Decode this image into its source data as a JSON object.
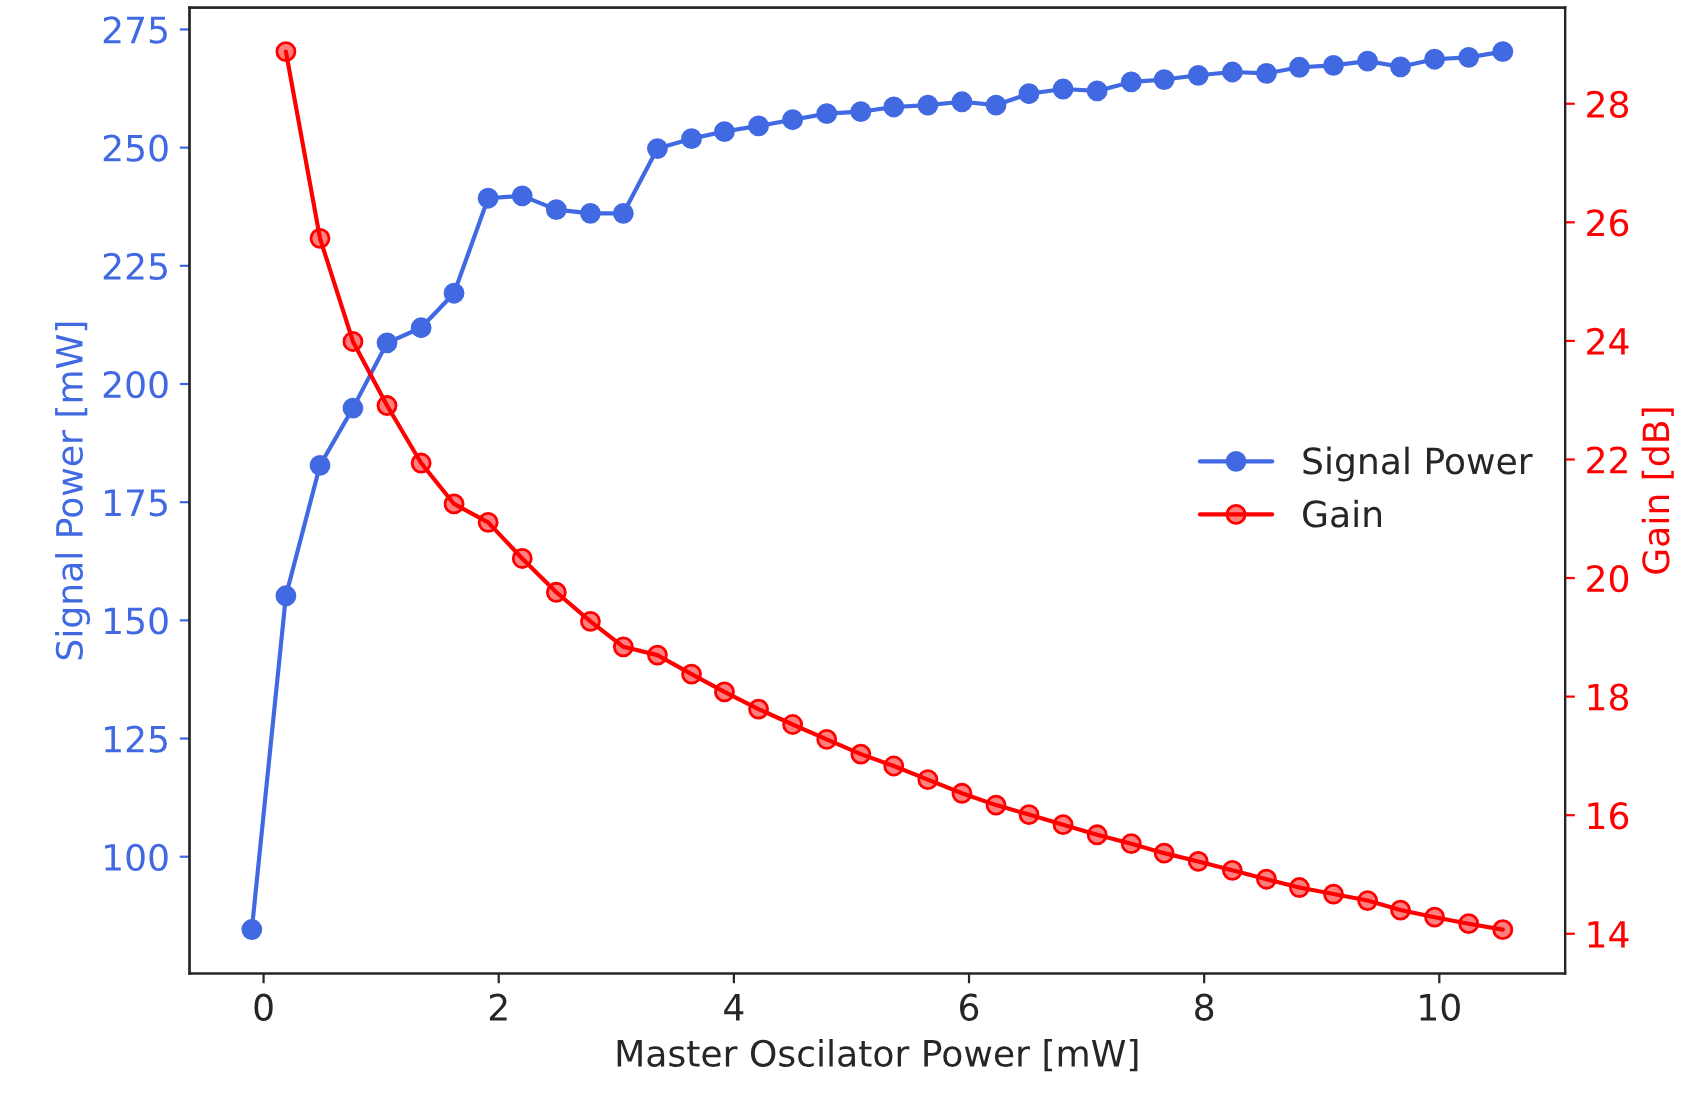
{
  "chart_data": {
    "type": "line",
    "xlabel": "Master Oscilator Power [mW]",
    "ylabel": "Signal Power [mW]",
    "y2label": "Gain [dB]",
    "x": [
      -0.1,
      0.19,
      0.48,
      0.76,
      1.05,
      1.34,
      1.62,
      1.91,
      2.2,
      2.49,
      2.78,
      3.06,
      3.35,
      3.64,
      3.92,
      4.21,
      4.5,
      4.79,
      5.08,
      5.36,
      5.65,
      5.94,
      6.23,
      6.51,
      6.8,
      7.09,
      7.38,
      7.66,
      7.95,
      8.24,
      8.53,
      8.81,
      9.1,
      9.39,
      9.67,
      9.96,
      10.25,
      10.54
    ],
    "series": [
      {
        "name": "Signal Power",
        "color": "#4169e1",
        "values": [
          84.6,
          155.2,
          182.8,
          194.9,
          208.7,
          211.9,
          219.2,
          239.3,
          239.8,
          236.9,
          236.1,
          236.1,
          249.8,
          251.9,
          253.4,
          254.6,
          255.9,
          257.2,
          257.6,
          258.6,
          259.0,
          259.7,
          259.0,
          261.4,
          262.4,
          262.0,
          263.9,
          264.4,
          265.3,
          266.0,
          265.7,
          267.0,
          267.4,
          268.3,
          267.1,
          268.7,
          269.1,
          270.3
        ]
      },
      {
        "name": "Gain",
        "color": "#ff0000",
        "axis": "y2",
        "values": [
          null,
          28.88,
          25.73,
          23.99,
          22.91,
          21.94,
          21.25,
          20.94,
          20.33,
          19.76,
          19.27,
          18.84,
          18.7,
          18.38,
          18.08,
          17.79,
          17.53,
          17.28,
          17.03,
          16.83,
          16.6,
          16.37,
          16.17,
          16.01,
          15.84,
          15.67,
          15.52,
          15.36,
          15.22,
          15.07,
          14.92,
          14.78,
          14.67,
          14.56,
          14.4,
          14.28,
          14.17,
          14.07
        ]
      }
    ],
    "xlim": [
      -0.63,
      11.07
    ],
    "xticks": [
      0,
      2,
      4,
      6,
      8,
      10
    ],
    "ylim": [
      75.3,
      279.6
    ],
    "yticks": [
      100,
      125,
      150,
      175,
      200,
      225,
      250,
      275
    ],
    "y2lim": [
      13.33,
      29.62
    ],
    "y2ticks": [
      14,
      16,
      18,
      20,
      22,
      24,
      26,
      28
    ],
    "marker": "circle",
    "line_style": "solid",
    "grid": false,
    "legend": "right"
  }
}
